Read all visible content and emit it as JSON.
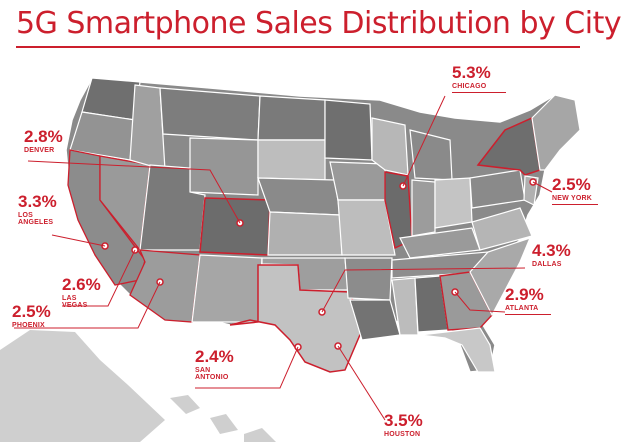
{
  "title": "5G Smartphone Sales Distribution by City",
  "colors": {
    "accent": "#cc1f2d",
    "state_dark": "#6f6f6f",
    "state_mid": "#8f8f8f",
    "state_light": "#b3b3b3",
    "land_light": "#cfcfcf"
  },
  "cities": [
    {
      "id": "chicago",
      "pct": "5.3%",
      "city": "CHICAGO"
    },
    {
      "id": "denver",
      "pct": "2.8%",
      "city": "DENVER"
    },
    {
      "id": "los-angeles",
      "pct": "3.3%",
      "city": "LOS\nANGELES"
    },
    {
      "id": "new-york",
      "pct": "2.5%",
      "city": "NEW YORK"
    },
    {
      "id": "dallas",
      "pct": "4.3%",
      "city": "DALLAS"
    },
    {
      "id": "las-vegas",
      "pct": "2.6%",
      "city": "LAS\nVEGAS"
    },
    {
      "id": "atlanta",
      "pct": "2.9%",
      "city": "ATLANTA"
    },
    {
      "id": "phoenix",
      "pct": "2.5%",
      "city": "PHOENIX"
    },
    {
      "id": "san-antonio",
      "pct": "2.4%",
      "city": "SAN\nANTONIO"
    },
    {
      "id": "houston",
      "pct": "3.5%",
      "city": "HOUSTON"
    }
  ]
}
